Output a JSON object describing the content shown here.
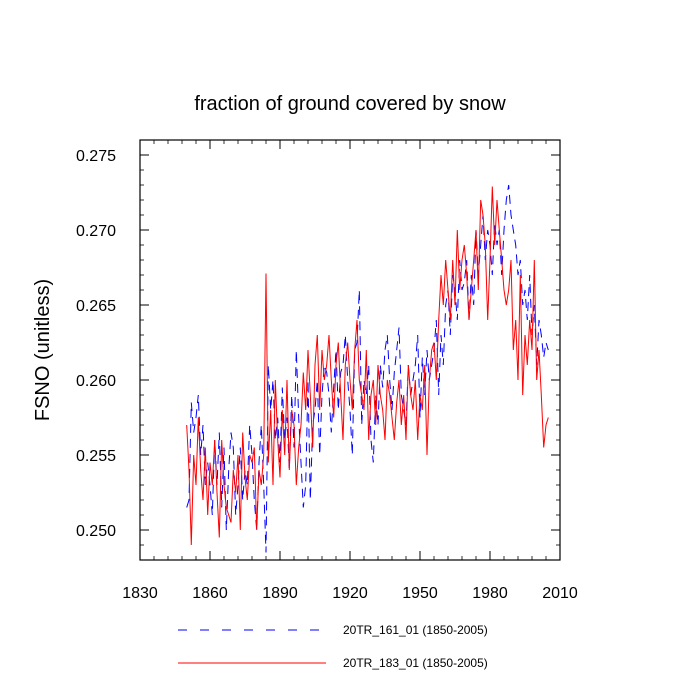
{
  "chart_data": {
    "type": "line",
    "title": "fraction of ground covered by snow",
    "xlabel": "",
    "ylabel": "FSNO  (unitless)",
    "xlim": [
      1830,
      2010
    ],
    "ylim": [
      0.248,
      0.276
    ],
    "x_ticks": [
      1830,
      1860,
      1890,
      1920,
      1950,
      1980,
      2010
    ],
    "y_ticks": [
      0.25,
      0.255,
      0.26,
      0.265,
      0.27,
      0.275
    ],
    "x_tick_labels": [
      "1830",
      "1860",
      "1890",
      "1920",
      "1950",
      "1980",
      "2010"
    ],
    "y_tick_labels": [
      "0.250",
      "0.255",
      "0.260",
      "0.265",
      "0.270",
      "0.275"
    ],
    "legend_position": "bottom",
    "series": [
      {
        "name": "20TR_161_01 (1850-2005)",
        "color": "#0000ff",
        "style": "dashed",
        "x_start": 1850,
        "values": [
          0.2515,
          0.252,
          0.2585,
          0.2565,
          0.2575,
          0.259,
          0.255,
          0.257,
          0.253,
          0.2545,
          0.253,
          0.251,
          0.256,
          0.253,
          0.2565,
          0.2515,
          0.2555,
          0.25,
          0.254,
          0.2565,
          0.2555,
          0.251,
          0.253,
          0.2555,
          0.252,
          0.254,
          0.253,
          0.257,
          0.255,
          0.252,
          0.25,
          0.2545,
          0.257,
          0.253,
          0.2485,
          0.261,
          0.258,
          0.26,
          0.256,
          0.2575,
          0.2545,
          0.2595,
          0.256,
          0.2575,
          0.254,
          0.259,
          0.2555,
          0.262,
          0.2575,
          0.2545,
          0.2515,
          0.253,
          0.26,
          0.252,
          0.257,
          0.258,
          0.26,
          0.255,
          0.259,
          0.261,
          0.2605,
          0.259,
          0.2565,
          0.2595,
          0.262,
          0.258,
          0.2605,
          0.261,
          0.263,
          0.26,
          0.258,
          0.255,
          0.262,
          0.2625,
          0.266,
          0.257,
          0.26,
          0.259,
          0.261,
          0.256,
          0.2545,
          0.259,
          0.257,
          0.261,
          0.2595,
          0.262,
          0.263,
          0.26,
          0.258,
          0.2605,
          0.262,
          0.2635,
          0.259,
          0.258,
          0.257,
          0.261,
          0.259,
          0.26,
          0.261,
          0.263,
          0.2575,
          0.2615,
          0.259,
          0.262,
          0.26,
          0.261,
          0.262,
          0.264,
          0.259,
          0.263,
          0.261,
          0.265,
          0.266,
          0.263,
          0.267,
          0.266,
          0.264,
          0.268,
          0.266,
          0.2665,
          0.268,
          0.264,
          0.267,
          0.265,
          0.27,
          0.267,
          0.269,
          0.271,
          0.268,
          0.27,
          0.269,
          0.267,
          0.2705,
          0.269,
          0.27,
          0.267,
          0.27,
          0.272,
          0.273,
          0.271,
          0.27,
          0.269,
          0.267,
          0.268,
          0.265,
          0.266,
          0.264,
          0.267,
          0.263,
          0.265,
          0.261,
          0.264,
          0.263,
          0.2615,
          0.2625,
          0.262
        ]
      },
      {
        "name": "20TR_183_01 (1850-2005)",
        "color": "#ff0000",
        "style": "solid",
        "x_start": 1850,
        "values": [
          0.257,
          0.254,
          0.249,
          0.255,
          0.253,
          0.2575,
          0.254,
          0.252,
          0.2555,
          0.251,
          0.2545,
          0.253,
          0.256,
          0.2525,
          0.2495,
          0.256,
          0.253,
          0.2515,
          0.251,
          0.2505,
          0.254,
          0.2525,
          0.255,
          0.25,
          0.2565,
          0.2535,
          0.252,
          0.255,
          0.2545,
          0.2555,
          0.25,
          0.254,
          0.253,
          0.255,
          0.2671,
          0.2545,
          0.258,
          0.253,
          0.26,
          0.256,
          0.2535,
          0.258,
          0.255,
          0.26,
          0.254,
          0.258,
          0.257,
          0.253,
          0.2555,
          0.257,
          0.2605,
          0.258,
          0.262,
          0.259,
          0.2555,
          0.261,
          0.263,
          0.258,
          0.262,
          0.26,
          0.261,
          0.263,
          0.26,
          0.2575,
          0.261,
          0.2625,
          0.259,
          0.256,
          0.261,
          0.2625,
          0.26,
          0.258,
          0.262,
          0.264,
          0.26,
          0.259,
          0.258,
          0.262,
          0.256,
          0.259,
          0.26,
          0.257,
          0.261,
          0.259,
          0.258,
          0.256,
          0.26,
          0.259,
          0.2575,
          0.256,
          0.2585,
          0.26,
          0.257,
          0.259,
          0.256,
          0.261,
          0.259,
          0.258,
          0.26,
          0.256,
          0.259,
          0.258,
          0.261,
          0.255,
          0.26,
          0.262,
          0.2625,
          0.26,
          0.264,
          0.267,
          0.265,
          0.268,
          0.266,
          0.264,
          0.268,
          0.265,
          0.27,
          0.266,
          0.268,
          0.269,
          0.267,
          0.264,
          0.266,
          0.268,
          0.27,
          0.266,
          0.272,
          0.271,
          0.269,
          0.264,
          0.268,
          0.2729,
          0.269,
          0.272,
          0.27,
          0.268,
          0.266,
          0.265,
          0.266,
          0.268,
          0.262,
          0.264,
          0.26,
          0.267,
          0.259,
          0.263,
          0.261,
          0.264,
          0.262,
          0.268,
          0.26,
          0.262,
          0.259,
          0.2555,
          0.257,
          0.2575
        ]
      }
    ]
  }
}
